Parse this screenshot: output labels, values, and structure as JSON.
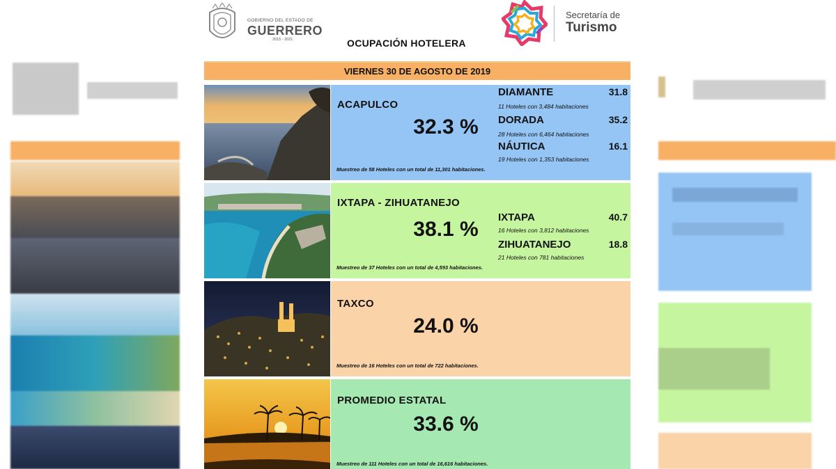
{
  "header": {
    "gov_small": "GOBIERNO DEL ESTADO DE",
    "gov_name": "GUERRERO",
    "gov_years": "2015 - 2021",
    "title": "OCUPACIÓN HOTELERA",
    "tourism_small": "Secretaría de",
    "tourism_big": "Turismo"
  },
  "date": "VIERNES 30 DE AGOSTO DE 2019",
  "destinations": [
    {
      "name": "ACAPULCO",
      "occupancy": "32.3 %",
      "sample": "Muestreo de 58 Hoteles con un total de 11,301 habitaciones.",
      "panel_color": "#94C5F5",
      "zones": [
        {
          "name": "DIAMANTE",
          "value": "31.8",
          "info": "11 Hoteles con 3,484 habitaciones"
        },
        {
          "name": "DORADA",
          "value": "35.2",
          "info": "28 Hoteles con 6,464 habitaciones"
        },
        {
          "name": "NÁUTICA",
          "value": "16.1",
          "info": "19 Hoteles con 1,353 habitaciones"
        }
      ]
    },
    {
      "name": "IXTAPA - ZIHUATANEJO",
      "occupancy": "38.1 %",
      "sample": "Muestreo de 37 Hoteles con un total de 4,593 habitaciones.",
      "panel_color": "#C6F5A0",
      "zones": [
        {
          "name": "IXTAPA",
          "value": "40.7",
          "info": "16 Hoteles con 3,812 habitaciones"
        },
        {
          "name": "ZIHUATANEJO",
          "value": "18.8",
          "info": "21 Hoteles con 781 habitaciones"
        }
      ]
    },
    {
      "name": "TAXCO",
      "occupancy": "24.0 %",
      "sample": "Muestreo de 16 Hoteles con un total de 722 habitaciones.",
      "panel_color": "#FAD3A8",
      "zones": []
    },
    {
      "name": "PROMEDIO ESTATAL",
      "occupancy": "33.6 %",
      "sample": "Muestreo de 111 Hoteles con un total de 16,616 habitaciones.",
      "panel_color": "#A6E8B1",
      "zones": []
    }
  ]
}
